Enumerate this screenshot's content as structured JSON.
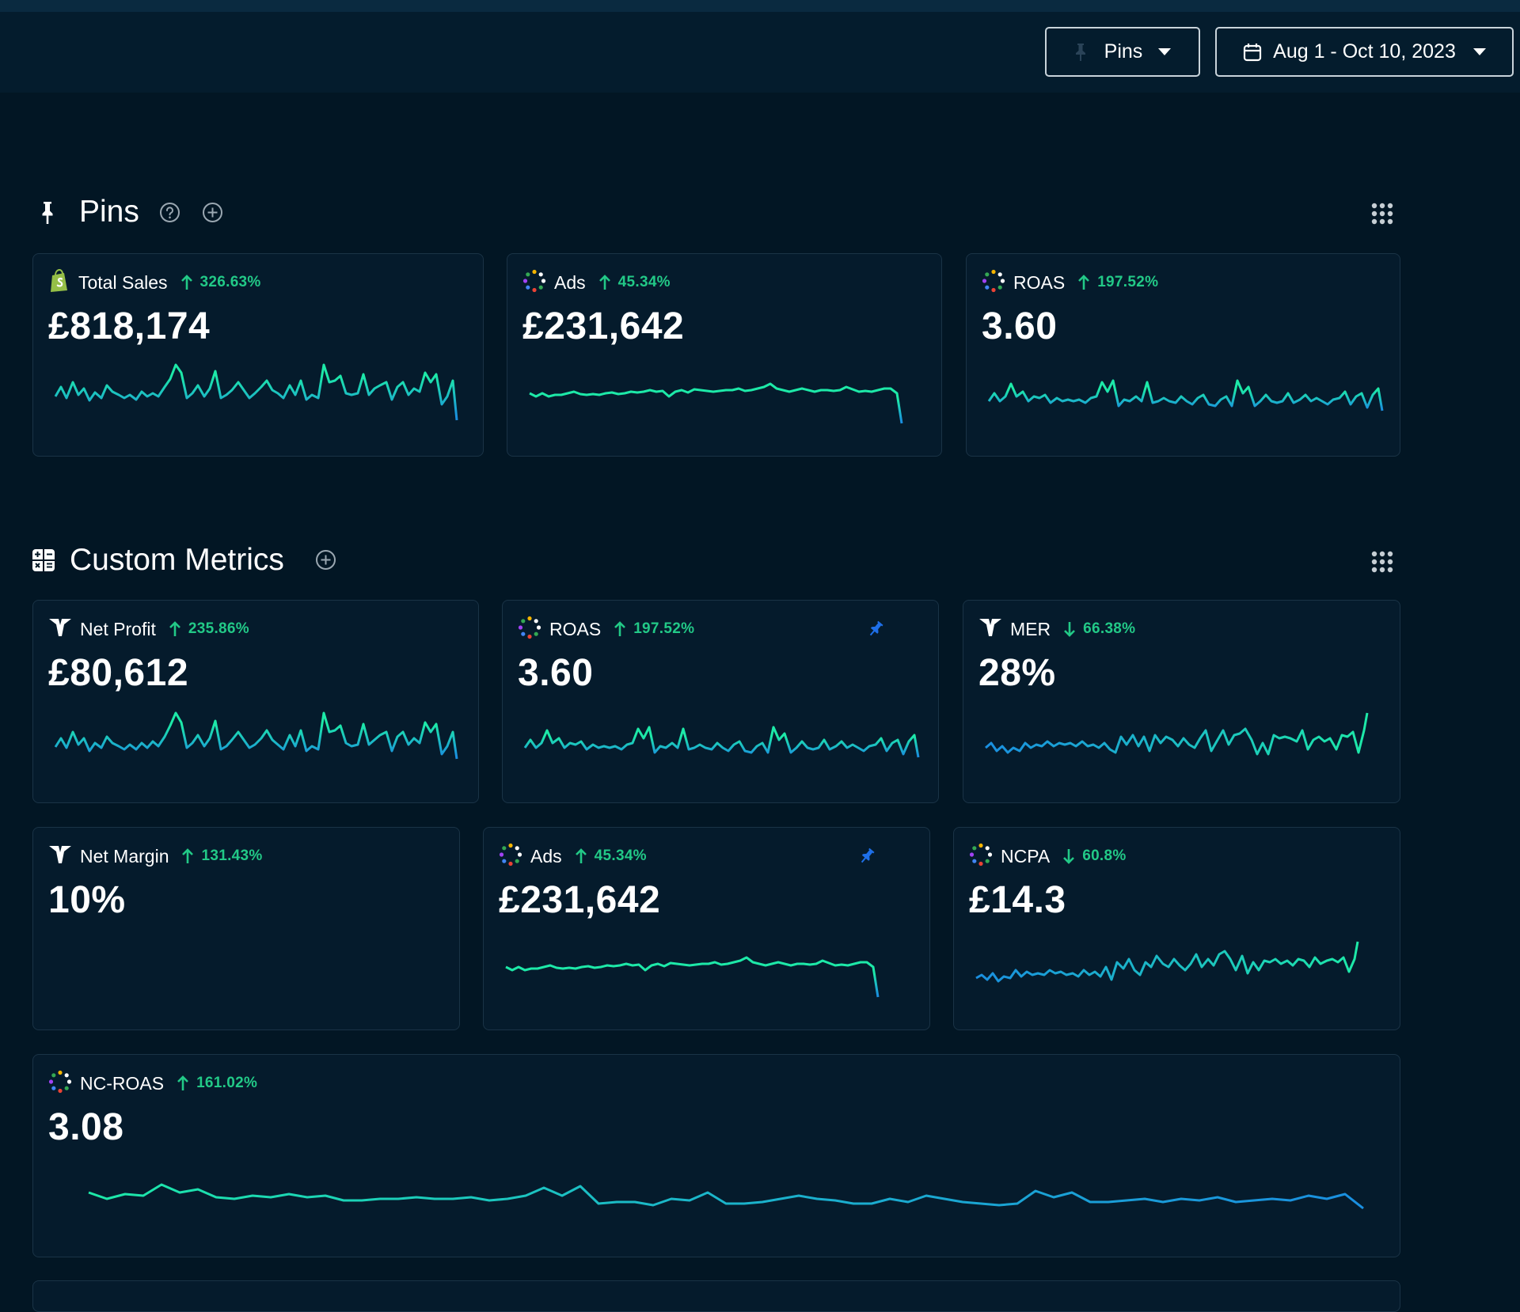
{
  "header": {
    "pins_button_label": "Pins",
    "date_range_label": "Aug 1 - Oct 10, 2023"
  },
  "colors": {
    "background": "#021624",
    "card": "#051b2c",
    "positive": "#22c987",
    "line_green": "#1de9a8",
    "line_blue": "#1a8fe0",
    "pin_blue": "#1e6fe8"
  },
  "sections": {
    "pins": {
      "title": "Pins"
    },
    "custom_metrics": {
      "title": "Custom Metrics"
    }
  },
  "pins_cards": [
    {
      "name": "Total Sales",
      "delta": "326.63%",
      "direction": "up",
      "value": "£818,174",
      "icon": "shopify-icon"
    },
    {
      "name": "Ads",
      "delta": "45.34%",
      "direction": "up",
      "value": "£231,642",
      "icon": "ads-dots-icon"
    },
    {
      "name": "ROAS",
      "delta": "197.52%",
      "direction": "up",
      "value": "3.60",
      "icon": "ads-dots-icon"
    }
  ],
  "custom_cards": [
    {
      "name": "Net Profit",
      "delta": "235.86%",
      "direction": "up",
      "value": "£80,612",
      "icon": "brand-logo-icon"
    },
    {
      "name": "ROAS",
      "delta": "197.52%",
      "direction": "up",
      "value": "3.60",
      "icon": "ads-dots-icon",
      "pinned": true
    },
    {
      "name": "MER",
      "delta": "66.38%",
      "direction": "down",
      "value": "28%",
      "icon": "brand-logo-icon"
    },
    {
      "name": "Net Margin",
      "delta": "131.43%",
      "direction": "up",
      "value": "10%",
      "icon": "brand-logo-icon"
    },
    {
      "name": "Ads",
      "delta": "45.34%",
      "direction": "up",
      "value": "£231,642",
      "icon": "ads-dots-icon",
      "pinned": true
    },
    {
      "name": "NCPA",
      "delta": "60.8%",
      "direction": "down",
      "value": "£14.3",
      "icon": "ads-dots-icon"
    },
    {
      "name": "NC-ROAS",
      "delta": "161.02%",
      "direction": "up",
      "value": "3.08",
      "icon": "ads-dots-icon"
    }
  ]
}
